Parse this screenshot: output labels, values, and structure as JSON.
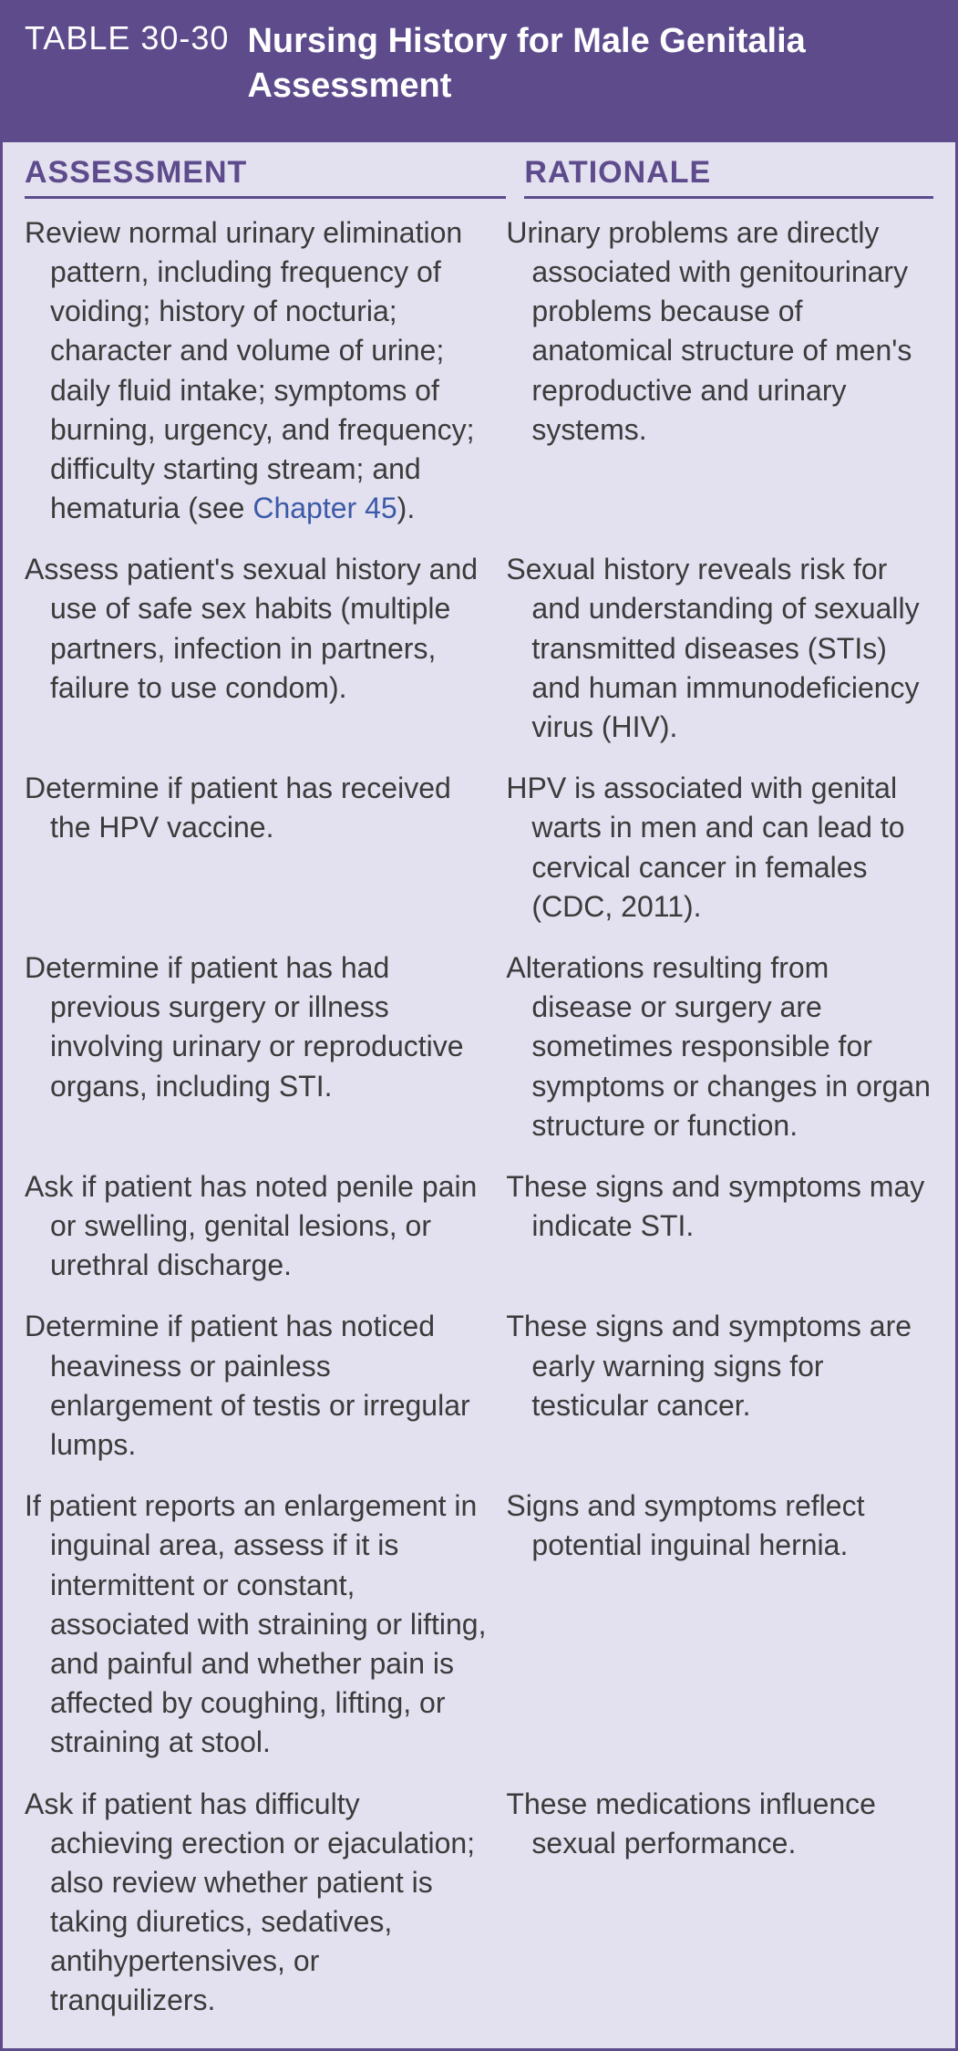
{
  "table": {
    "number_label": "TABLE 30-30",
    "title": "Nursing History for Male Genitalia Assessment",
    "columns": {
      "assessment": "ASSESSMENT",
      "rationale": "RATIONALE"
    },
    "rows": [
      {
        "assessment_pre": "Review normal urinary elimination pattern, including frequency of voiding; history of nocturia; character and volume of urine; daily fluid intake; symptoms of burning, urgency, and frequency; difficulty starting stream; and hematuria (see ",
        "assessment_link": "Chapter 45",
        "assessment_post": ").",
        "rationale": "Urinary problems are directly associated with genitourinary problems because of anatomical structure of men's reproductive and urinary systems."
      },
      {
        "assessment": "Assess patient's sexual history and use of safe sex habits (multiple partners, infection in partners, failure to use condom).",
        "rationale": "Sexual history reveals risk for and understanding of sexually transmitted diseases (STIs) and human immunodeficiency virus (HIV)."
      },
      {
        "assessment": "Determine if patient has received the HPV vaccine.",
        "rationale": "HPV is associated with genital warts in men and can lead to cervical cancer in females (CDC, 2011)."
      },
      {
        "assessment": "Determine if patient has had previous surgery or illness involving urinary or reproductive organs, including STI.",
        "rationale": "Alterations resulting from disease or surgery are sometimes responsible for symptoms or changes in organ structure or function."
      },
      {
        "assessment": "Ask if patient has noted penile pain or swelling, genital lesions, or urethral discharge.",
        "rationale": "These signs and symptoms may indicate STI."
      },
      {
        "assessment": "Determine if patient has noticed heaviness or painless enlargement of testis or irregular lumps.",
        "rationale": "These signs and symptoms are early warning signs for testicular cancer."
      },
      {
        "assessment": "If patient reports an enlargement in inguinal area, assess if it is intermittent or constant, associated with straining or lifting, and painful and whether pain is affected by coughing, lifting, or straining at stool.",
        "rationale": "Signs and symptoms reflect potential inguinal hernia."
      },
      {
        "assessment": "Ask if patient has difficulty achieving erection or ejaculation; also review whether patient is taking diuretics, sedatives, antihypertensives, or tranquilizers.",
        "rationale": "These medications influence sexual performance."
      }
    ],
    "colors": {
      "header_bg": "#5d4b8c",
      "body_bg": "#e3e0ef",
      "header_text": "#ffffff",
      "body_text": "#3b3b3b",
      "link_text": "#3b5ba8"
    }
  }
}
